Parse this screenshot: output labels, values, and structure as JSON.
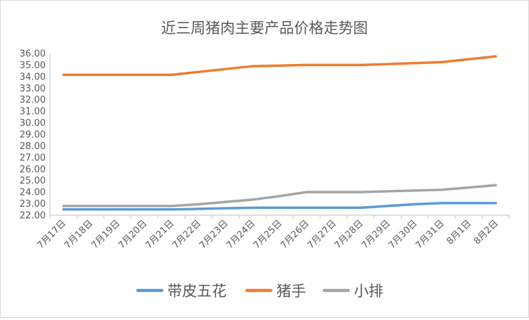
{
  "chart_data": {
    "type": "line",
    "title": "近三周猪肉主要产品价格走势图",
    "xlabel": "",
    "ylabel": "",
    "ylim": [
      22.0,
      36.0
    ],
    "yticks": [
      "22.00",
      "23.00",
      "24.00",
      "25.00",
      "26.00",
      "27.00",
      "28.00",
      "29.00",
      "30.00",
      "31.00",
      "32.00",
      "33.00",
      "34.00",
      "35.00",
      "36.00"
    ],
    "grid": false,
    "legend_position": "bottom",
    "categories": [
      "7月17日",
      "7月18日",
      "7月19日",
      "7月20日",
      "7月21日",
      "7月22日",
      "7月23日",
      "7月24日",
      "7月25日",
      "7月26日",
      "7月27日",
      "7月28日",
      "7月29日",
      "7月30日",
      "7月31日",
      "8月1日",
      "8月2日"
    ],
    "series": [
      {
        "name": "带皮五花",
        "color": "#5b9bd5",
        "values": [
          22.5,
          22.5,
          22.5,
          22.5,
          22.5,
          22.55,
          22.6,
          22.65,
          22.65,
          22.65,
          22.65,
          22.65,
          22.8,
          22.95,
          23.05,
          23.05,
          23.05
        ]
      },
      {
        "name": "猪手",
        "color": "#ed7d31",
        "values": [
          34.15,
          34.15,
          34.15,
          34.15,
          34.15,
          34.4,
          34.65,
          34.9,
          34.95,
          35.0,
          35.0,
          35.0,
          35.08,
          35.16,
          35.25,
          35.5,
          35.75
        ]
      },
      {
        "name": "小排",
        "color": "#a5a5a5",
        "values": [
          22.8,
          22.8,
          22.8,
          22.8,
          22.8,
          22.95,
          23.15,
          23.35,
          23.65,
          24.0,
          24.0,
          24.0,
          24.07,
          24.14,
          24.2,
          24.4,
          24.6
        ]
      }
    ]
  }
}
